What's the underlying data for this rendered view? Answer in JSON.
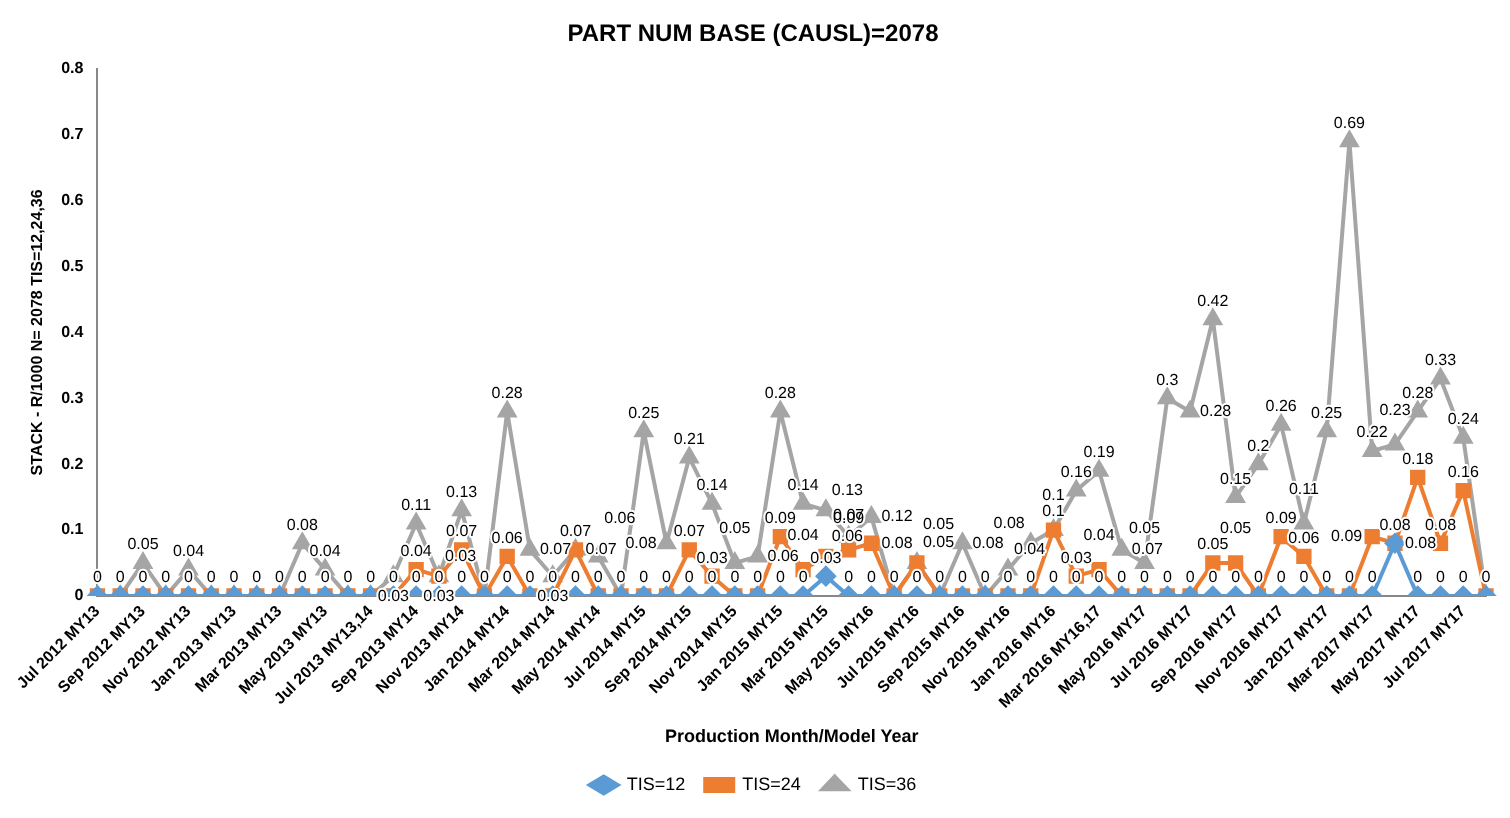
{
  "chart_data": {
    "type": "line",
    "title": "PART NUM BASE (CAUSL)=2078",
    "xlabel": "Production Month/Model Year",
    "ylabel": "STACK - R/1000 N= 2078 TIS=12,24,36",
    "categories": [
      "Jul 2012 MY13",
      null,
      "Sep 2012 MY13",
      null,
      "Nov 2012 MY13",
      null,
      "Jan 2013 MY13",
      null,
      "Mar 2013 MY13",
      null,
      "May 2013 MY13",
      null,
      "Jul 2013 MY13,14",
      null,
      "Sep 2013 MY14",
      null,
      "Nov 2013 MY14",
      null,
      "Jan 2014 MY14",
      null,
      "Mar 2014 MY14",
      null,
      "May 2014 MY14",
      null,
      "Jul 2014 MY15",
      null,
      "Sep 2014 MY15",
      null,
      "Nov 2014 MY15",
      null,
      "Jan 2015 MY15",
      null,
      "Mar 2015 MY15",
      null,
      "May 2015 MY16",
      null,
      "Jul 2015 MY16",
      null,
      "Sep 2015 MY16",
      null,
      "Nov 2015 MY16",
      null,
      "Jan 2016 MY16",
      null,
      "Mar 2016 MY16,17",
      null,
      "May 2016 MY17",
      null,
      "Jul 2016 MY17",
      null,
      "Sep 2016 MY17",
      null,
      "Nov 2016 MY17",
      null,
      "Jan 2017 MY17",
      null,
      "Mar 2017 MY17",
      null,
      "May 2017 MY17",
      null,
      "Jul 2017 MY17",
      null
    ],
    "series": [
      {
        "name": "TIS=12",
        "color": "#5b9bd5",
        "marker": "diamond",
        "values": [
          0,
          0,
          0,
          0,
          0,
          0,
          0,
          0,
          0,
          0,
          0,
          0,
          0,
          0,
          0,
          0,
          0,
          0,
          0,
          0,
          0,
          0,
          0,
          0,
          0,
          0,
          0,
          0,
          0,
          0,
          0,
          0,
          0.03,
          0,
          0,
          0,
          0,
          0,
          0,
          0,
          0,
          0,
          0,
          0,
          0,
          0,
          0,
          0,
          0,
          0,
          0,
          0,
          0,
          0,
          0,
          0,
          0,
          0.08,
          0,
          0,
          0,
          0
        ],
        "value_labels": [
          "0",
          "0",
          "0",
          "0",
          "0",
          "0",
          "0",
          "0",
          "0",
          "0",
          "0",
          "0",
          "0",
          "0",
          "0",
          "0",
          "0",
          "0",
          "0",
          "0",
          "0",
          "0",
          "0",
          "0",
          "0",
          "0",
          "0",
          "0",
          "0",
          "0",
          "0",
          "0",
          "0.03",
          "0",
          "0",
          "0",
          "0",
          "0",
          "0",
          "0",
          "0",
          "0",
          "0",
          "0",
          "0",
          "0",
          "0",
          "0",
          "0",
          "0",
          "0",
          "0",
          "0",
          "0",
          "0",
          "0",
          "0",
          "0.08",
          "0",
          "0",
          "0",
          "0"
        ]
      },
      {
        "name": "TIS=24",
        "color": "#ed7d31",
        "marker": "square",
        "values": [
          0,
          0,
          0,
          0,
          0,
          0,
          0,
          0,
          0,
          0,
          0,
          0,
          0,
          0,
          0.04,
          0.03,
          0.07,
          0,
          0.06,
          0,
          0,
          0.07,
          0,
          0,
          0,
          0,
          0.07,
          0.03,
          0,
          0,
          0.09,
          0.04,
          0.06,
          0.07,
          0.08,
          0,
          0.05,
          0,
          0,
          0,
          0,
          0,
          0.1,
          0.03,
          0.04,
          0,
          0,
          0,
          0,
          0.05,
          0.05,
          0,
          0.09,
          0.06,
          0,
          0,
          0.09,
          0.08,
          0.18,
          0.08,
          0.16,
          0
        ],
        "value_labels": [
          null,
          null,
          null,
          null,
          null,
          null,
          null,
          null,
          null,
          null,
          null,
          null,
          null,
          null,
          "0.04",
          "0.03",
          "0.07",
          null,
          "0.06",
          null,
          null,
          "0.07",
          null,
          null,
          null,
          null,
          "0.07",
          "0.03",
          null,
          null,
          "0.09",
          "0.04",
          "0.06",
          "0.07",
          "0.08",
          null,
          "0.05",
          null,
          null,
          null,
          null,
          null,
          "0.1",
          "0.03",
          "0.04",
          null,
          null,
          null,
          null,
          "0.05",
          "0.05",
          null,
          "0.09",
          "0.06",
          null,
          null,
          "0.09",
          "0.08",
          "0.18",
          "0.08",
          "0.16",
          null
        ]
      },
      {
        "name": "TIS=36",
        "color": "#a5a5a5",
        "marker": "triangle",
        "values": [
          0,
          0,
          0.05,
          0,
          0.04,
          0,
          0,
          0,
          0,
          0.08,
          0.04,
          0,
          0,
          0.03,
          0.11,
          0.03,
          0.13,
          0,
          0.28,
          0.07,
          0.03,
          0.07,
          0.06,
          0,
          0.25,
          0.08,
          0.21,
          0.14,
          0.05,
          0.06,
          0.28,
          0.14,
          0.13,
          0.09,
          0.12,
          0,
          0.05,
          0,
          0.08,
          0,
          0.04,
          0.08,
          0.1,
          0.16,
          0.19,
          0.07,
          0.05,
          0.3,
          0.28,
          0.42,
          0.15,
          0.2,
          0.26,
          0.11,
          0.25,
          0.69,
          0.22,
          0.23,
          0.28,
          0.33,
          0.24,
          0
        ],
        "value_labels": [
          null,
          null,
          "0.05",
          null,
          "0.04",
          null,
          null,
          null,
          null,
          "0.08",
          "0.04",
          null,
          null,
          "0.03",
          "0.11",
          "0.03",
          "0.13",
          null,
          "0.28",
          "0.07",
          "0.03",
          "0.07",
          "0.06",
          null,
          "0.25",
          "0.08",
          "0.21",
          "0.14",
          "0.05",
          "0.06",
          "0.28",
          "0.14",
          "0.13",
          "0.09",
          "0.12",
          null,
          "0.05",
          null,
          "0.08",
          null,
          "0.04",
          "0.08",
          "0.1",
          "0.16",
          "0.19",
          "0.07",
          "0.05",
          "0.3",
          "0.28",
          "0.42",
          "0.15",
          "0.2",
          "0.26",
          "0.11",
          "0.25",
          "0.69",
          "0.22",
          "0.23",
          "0.28",
          "0.33",
          "0.24",
          null
        ]
      }
    ],
    "ylim": [
      0,
      0.8
    ],
    "yticks": [
      0,
      0.1,
      0.2,
      0.3,
      0.4,
      0.5,
      0.6,
      0.7,
      0.8
    ],
    "grid": false,
    "legend": "bottom",
    "line_style": "solid"
  }
}
